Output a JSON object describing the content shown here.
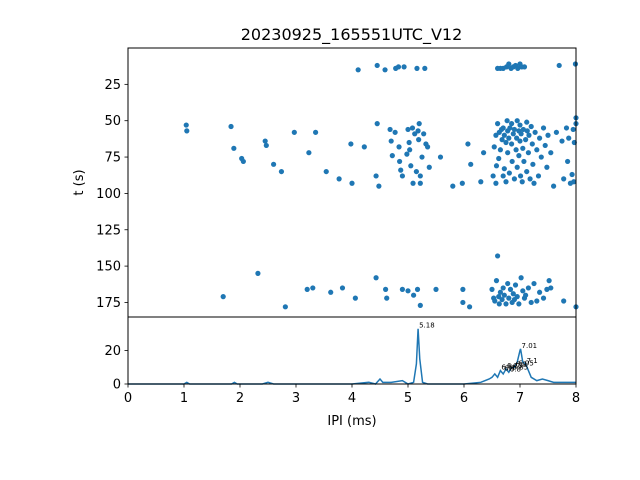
{
  "chart_data": [
    {
      "type": "scatter",
      "title": "20230925_165551UTC_V12",
      "xlabel": "",
      "ylabel": "t (s)",
      "xlim": [
        0,
        8
      ],
      "ylim": [
        185,
        0
      ],
      "y_inverted": true,
      "yticks": [
        25,
        50,
        75,
        100,
        125,
        150,
        175
      ],
      "grid": false,
      "color": "#1f77b4",
      "points": [
        [
          1.04,
          53
        ],
        [
          1.05,
          57
        ],
        [
          1.84,
          54
        ],
        [
          1.89,
          69
        ],
        [
          2.03,
          76
        ],
        [
          2.06,
          78
        ],
        [
          2.45,
          64
        ],
        [
          2.47,
          67
        ],
        [
          2.6,
          80
        ],
        [
          2.74,
          85
        ],
        [
          2.97,
          58
        ],
        [
          3.23,
          72
        ],
        [
          3.35,
          58
        ],
        [
          3.54,
          85
        ],
        [
          3.77,
          90
        ],
        [
          3.98,
          66
        ],
        [
          4.0,
          93
        ],
        [
          4.11,
          15
        ],
        [
          4.22,
          68
        ],
        [
          4.43,
          88
        ],
        [
          4.45,
          12
        ],
        [
          4.45,
          52
        ],
        [
          4.48,
          95
        ],
        [
          4.59,
          15
        ],
        [
          4.68,
          56
        ],
        [
          4.7,
          64
        ],
        [
          4.72,
          74
        ],
        [
          4.77,
          58
        ],
        [
          4.78,
          14
        ],
        [
          4.83,
          13
        ],
        [
          4.84,
          68
        ],
        [
          4.85,
          78
        ],
        [
          4.87,
          84
        ],
        [
          4.9,
          88
        ],
        [
          4.93,
          13
        ],
        [
          4.98,
          73
        ],
        [
          5.0,
          56
        ],
        [
          5.02,
          65
        ],
        [
          5.03,
          70
        ],
        [
          5.05,
          81
        ],
        [
          5.08,
          55
        ],
        [
          5.09,
          93
        ],
        [
          5.12,
          59
        ],
        [
          5.15,
          85
        ],
        [
          5.16,
          14
        ],
        [
          5.18,
          57
        ],
        [
          5.19,
          63
        ],
        [
          5.2,
          52
        ],
        [
          5.22,
          88
        ],
        [
          5.22,
          93
        ],
        [
          5.25,
          75
        ],
        [
          5.28,
          59
        ],
        [
          5.3,
          14
        ],
        [
          5.32,
          66
        ],
        [
          5.35,
          68
        ],
        [
          5.38,
          82
        ],
        [
          5.58,
          75
        ],
        [
          5.8,
          95
        ],
        [
          5.97,
          93
        ],
        [
          6.07,
          66
        ],
        [
          6.12,
          80
        ],
        [
          6.3,
          92
        ],
        [
          6.35,
          72
        ],
        [
          6.52,
          88
        ],
        [
          6.54,
          68
        ],
        [
          6.57,
          60
        ],
        [
          6.57,
          93
        ],
        [
          6.58,
          81
        ],
        [
          6.6,
          14
        ],
        [
          6.6,
          52
        ],
        [
          6.62,
          76
        ],
        [
          6.63,
          58
        ],
        [
          6.65,
          14
        ],
        [
          6.65,
          70
        ],
        [
          6.67,
          56
        ],
        [
          6.68,
          63
        ],
        [
          6.7,
          14
        ],
        [
          6.7,
          88
        ],
        [
          6.7,
          55
        ],
        [
          6.72,
          60
        ],
        [
          6.72,
          83
        ],
        [
          6.75,
          65
        ],
        [
          6.75,
          92
        ],
        [
          6.76,
          13
        ],
        [
          6.77,
          50
        ],
        [
          6.78,
          57
        ],
        [
          6.78,
          72
        ],
        [
          6.8,
          11
        ],
        [
          6.8,
          62
        ],
        [
          6.81,
          86
        ],
        [
          6.82,
          55
        ],
        [
          6.84,
          14
        ],
        [
          6.85,
          52
        ],
        [
          6.85,
          66
        ],
        [
          6.86,
          78
        ],
        [
          6.88,
          13
        ],
        [
          6.88,
          59
        ],
        [
          6.9,
          90
        ],
        [
          6.9,
          56
        ],
        [
          6.92,
          12
        ],
        [
          6.93,
          70
        ],
        [
          6.94,
          62
        ],
        [
          6.95,
          50
        ],
        [
          6.95,
          82
        ],
        [
          6.96,
          14
        ],
        [
          6.98,
          57
        ],
        [
          6.98,
          74
        ],
        [
          7.0,
          11
        ],
        [
          7.0,
          53
        ],
        [
          7.0,
          64
        ],
        [
          7.01,
          88
        ],
        [
          7.02,
          59
        ],
        [
          7.03,
          13
        ],
        [
          7.04,
          92
        ],
        [
          7.05,
          69
        ],
        [
          7.06,
          56
        ],
        [
          7.07,
          78
        ],
        [
          7.08,
          13
        ],
        [
          7.1,
          63
        ],
        [
          7.12,
          51
        ],
        [
          7.12,
          85
        ],
        [
          7.13,
          57
        ],
        [
          7.15,
          72
        ],
        [
          7.16,
          60
        ],
        [
          7.18,
          90
        ],
        [
          7.2,
          54
        ],
        [
          7.22,
          66
        ],
        [
          7.23,
          80
        ],
        [
          7.25,
          93
        ],
        [
          7.27,
          58
        ],
        [
          7.3,
          70
        ],
        [
          7.33,
          88
        ],
        [
          7.35,
          62
        ],
        [
          7.38,
          75
        ],
        [
          7.42,
          55
        ],
        [
          7.45,
          67
        ],
        [
          7.48,
          82
        ],
        [
          7.5,
          60
        ],
        [
          7.55,
          72
        ],
        [
          7.6,
          95
        ],
        [
          7.65,
          58
        ],
        [
          7.7,
          12
        ],
        [
          7.75,
          64
        ],
        [
          7.78,
          90
        ],
        [
          7.85,
          78
        ],
        [
          7.9,
          93
        ],
        [
          7.95,
          56
        ],
        [
          7.97,
          65
        ],
        [
          8.0,
          48
        ],
        [
          8.0,
          52
        ],
        [
          7.99,
          11
        ],
        [
          7.96,
          92
        ],
        [
          7.93,
          87
        ],
        [
          7.87,
          62
        ],
        [
          7.83,
          55
        ],
        [
          1.7,
          171
        ],
        [
          2.32,
          155
        ],
        [
          2.81,
          178
        ],
        [
          3.2,
          166
        ],
        [
          3.3,
          165
        ],
        [
          3.62,
          168
        ],
        [
          3.83,
          165
        ],
        [
          4.06,
          172
        ],
        [
          4.43,
          158
        ],
        [
          4.6,
          166
        ],
        [
          4.62,
          172
        ],
        [
          4.9,
          166
        ],
        [
          5.0,
          167
        ],
        [
          5.1,
          170
        ],
        [
          5.17,
          166
        ],
        [
          5.22,
          177
        ],
        [
          5.5,
          166
        ],
        [
          5.98,
          166
        ],
        [
          5.98,
          175
        ],
        [
          6.1,
          178
        ],
        [
          6.5,
          166
        ],
        [
          6.53,
          172
        ],
        [
          6.55,
          174
        ],
        [
          6.58,
          160
        ],
        [
          6.6,
          143
        ],
        [
          6.62,
          171
        ],
        [
          6.63,
          176
        ],
        [
          6.65,
          168
        ],
        [
          6.68,
          173
        ],
        [
          6.7,
          165
        ],
        [
          6.72,
          170
        ],
        [
          6.75,
          176
        ],
        [
          6.78,
          162
        ],
        [
          6.8,
          172
        ],
        [
          6.83,
          166
        ],
        [
          6.86,
          175
        ],
        [
          6.88,
          169
        ],
        [
          6.9,
          173
        ],
        [
          6.92,
          163
        ],
        [
          6.95,
          171
        ],
        [
          6.98,
          176
        ],
        [
          7.02,
          158
        ],
        [
          7.05,
          167
        ],
        [
          7.08,
          172
        ],
        [
          7.1,
          170
        ],
        [
          7.15,
          165
        ],
        [
          7.2,
          175
        ],
        [
          7.25,
          162
        ],
        [
          7.3,
          174
        ],
        [
          7.35,
          168
        ],
        [
          7.42,
          172
        ],
        [
          7.48,
          166
        ],
        [
          7.52,
          160
        ],
        [
          7.55,
          165
        ],
        [
          7.78,
          174
        ],
        [
          8.0,
          178
        ]
      ]
    },
    {
      "type": "line",
      "title": "",
      "xlabel": "IPI (ms)",
      "ylabel": "",
      "xlim": [
        0,
        8
      ],
      "ylim": [
        0,
        40
      ],
      "xticks": [
        0,
        1,
        2,
        3,
        4,
        5,
        6,
        7,
        8
      ],
      "yticks": [
        0,
        20
      ],
      "grid": false,
      "color": "#1f77b4",
      "x": [
        0,
        0.5,
        1.0,
        1.05,
        1.1,
        1.5,
        1.85,
        1.9,
        1.95,
        2.4,
        2.5,
        2.6,
        3.0,
        3.5,
        4.0,
        4.3,
        4.42,
        4.5,
        4.55,
        4.7,
        4.9,
        5.0,
        5.1,
        5.15,
        5.18,
        5.21,
        5.26,
        5.35,
        5.5,
        5.8,
        6.0,
        6.3,
        6.45,
        6.5,
        6.55,
        6.6,
        6.65,
        6.7,
        6.75,
        6.8,
        6.85,
        6.9,
        6.95,
        7.0,
        7.01,
        7.05,
        7.1,
        7.15,
        7.2,
        7.3,
        7.4,
        7.5,
        7.6,
        7.8,
        8.0
      ],
      "y": [
        0,
        0,
        0,
        1,
        0,
        0,
        0,
        1,
        0,
        0,
        1,
        0,
        0,
        0,
        0,
        1,
        0,
        3,
        1,
        1,
        2,
        0,
        1,
        12,
        33,
        15,
        1,
        0,
        0,
        0,
        0,
        1,
        3,
        4,
        6,
        4,
        8,
        6,
        9,
        7,
        10,
        10,
        13,
        20,
        21,
        13,
        12,
        8,
        4,
        2,
        3,
        2,
        1,
        1,
        1
      ],
      "annotations": [
        {
          "x": 5.18,
          "y": 33,
          "text": "5.18"
        },
        {
          "x": 7.01,
          "y": 21,
          "text": "7.01"
        },
        {
          "x": 7.1,
          "y": 12,
          "text": "7.1"
        },
        {
          "x": 6.9,
          "y": 10,
          "text": "6.9"
        },
        {
          "x": 6.95,
          "y": 10.5,
          "text": "6.95"
        },
        {
          "x": 6.75,
          "y": 9,
          "text": "6.75"
        },
        {
          "x": 6.85,
          "y": 8,
          "text": "6.85"
        },
        {
          "x": 6.65,
          "y": 8,
          "text": "6.65"
        },
        {
          "x": 6.7,
          "y": 7.5,
          "text": "6.7"
        },
        {
          "x": 6.8,
          "y": 7,
          "text": "6.8"
        }
      ]
    }
  ]
}
